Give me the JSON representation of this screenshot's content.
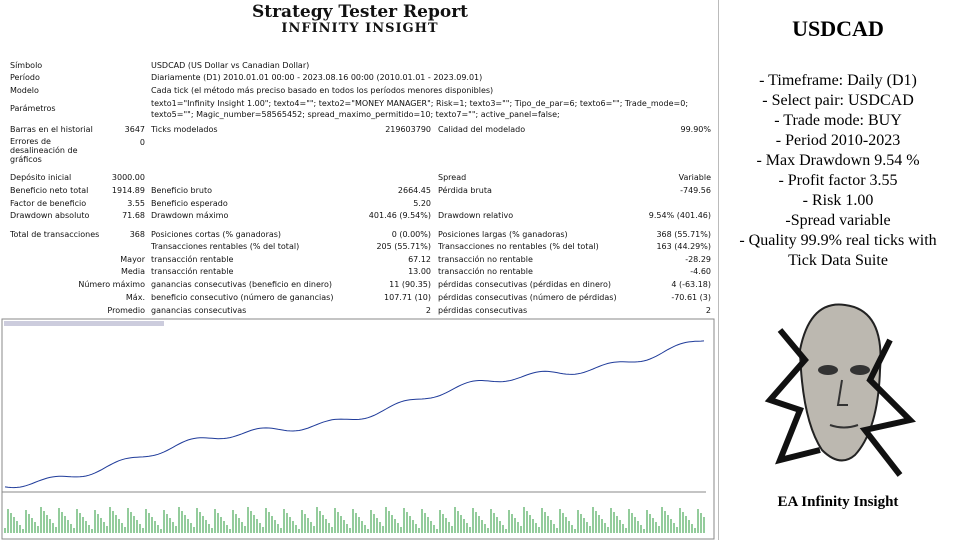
{
  "header": {
    "title": "Strategy Tester Report",
    "subtitle": "INFINITY INSIGHT"
  },
  "info": [
    {
      "label": "Símbolo",
      "value": "USDCAD (US Dollar vs Canadian Dollar)"
    },
    {
      "label": "Período",
      "value": "Diariamente (D1) 2010.01.01 00:00 - 2023.08.16 00:00 (2010.01.01 - 2023.09.01)"
    },
    {
      "label": "Modelo",
      "value": "Cada tick (el método más preciso basado en todos los períodos menores disponibles)"
    },
    {
      "label": "Parámetros",
      "value": "texto1=\"Infinity Insight 1.00\"; texto4=\"\"; texto2=\"MONEY MANAGER\"; Risk=1; texto3=\"\"; Tipo_de_par=6; texto6=\"\"; Trade_mode=0; texto5=\"\"; Magic_number=58565452; spread_maximo_permitido=10; texto7=\"\"; active_panel=false;"
    }
  ],
  "stats": [
    [
      "Barras en el historial",
      "3647",
      "Ticks modelados",
      "219603790",
      "Calidad del modelado",
      "99.90%"
    ],
    [
      "Errores de desalineación de gráficos",
      "0",
      null,
      null,
      null,
      null
    ],
    [
      "Depósito inicial",
      "3000.00",
      null,
      null,
      "Spread",
      "Variable"
    ],
    [
      "Beneficio neto total",
      "1914.89",
      "Beneficio bruto",
      "2664.45",
      "Pérdida bruta",
      "-749.56"
    ],
    [
      "Factor de beneficio",
      "3.55",
      "Beneficio esperado",
      "5.20",
      null,
      null
    ],
    [
      "Drawdown absoluto",
      "71.68",
      "Drawdown máximo",
      "401.46 (9.54%)",
      "Drawdown relativo",
      "9.54% (401.46)"
    ],
    [
      "Total de transacciones",
      "368",
      "Posiciones cortas (% ganadoras)",
      "0 (0.00%)",
      "Posiciones largas (% ganadoras)",
      "368 (55.71%)"
    ],
    [
      null,
      null,
      "Transacciones rentables (% del total)",
      "205 (55.71%)",
      "Transacciones no rentables (% del total)",
      "163 (44.29%)"
    ],
    [
      null,
      "Mayor",
      "transacción rentable",
      "67.12",
      "transacción no rentable",
      "-28.29"
    ],
    [
      null,
      "Media",
      "transacción rentable",
      "13.00",
      "transacción no rentable",
      "-4.60"
    ],
    [
      null,
      "Número máximo",
      "ganancias consecutivas (beneficio en dinero)",
      "11 (90.35)",
      "pérdidas consecutivas (pérdidas en dinero)",
      "4 (-63.18)"
    ],
    [
      null,
      "Máx.",
      "beneficio consecutivo (número de ganancias)",
      "107.71 (10)",
      "pérdidas consecutivas (número de pérdidas)",
      "-70.61 (3)"
    ],
    [
      null,
      "Promedio",
      "ganancias consecutivas",
      "2",
      "pérdidas consecutivas",
      "2"
    ]
  ],
  "side": {
    "title": "USDCAD",
    "lines": [
      "- Timeframe: Daily (D1)",
      "- Select pair: USDCAD",
      "- Trade mode: BUY",
      "- Period 2010-2023",
      "- Max Drawdown 9.54 %",
      "- Profit factor 3.55",
      "- Risk 1.00",
      "-Spread variable",
      "- Quality 99.9% real ticks with",
      "Tick Data Suite"
    ],
    "caption": "EA Infinity Insight"
  }
}
